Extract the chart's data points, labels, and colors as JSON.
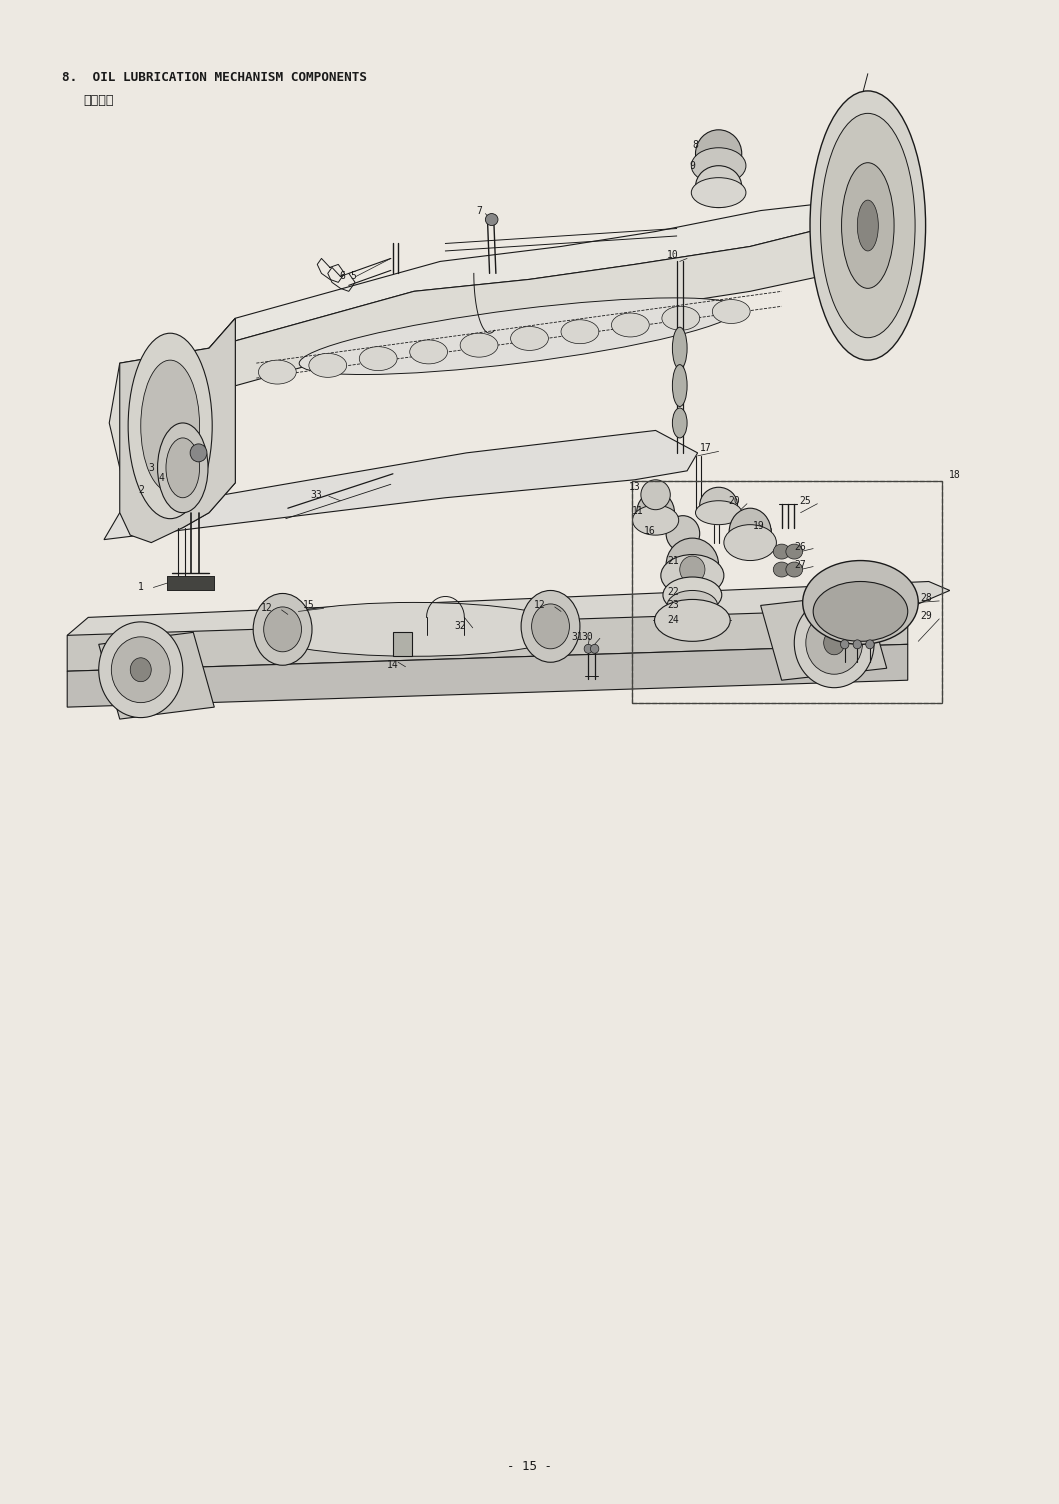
{
  "page_width": 10.59,
  "page_height": 15.04,
  "dpi": 100,
  "bg_color": "#ede9e2",
  "title_line1": "8.  OIL LUBRICATION MECHANISM COMPONENTS",
  "title_line2": "給油関係",
  "page_number": "- 15 -",
  "line_color": "#1a1a1a",
  "label_fontsize": 7.0,
  "title_fontsize": 9.2,
  "subtitle_fontsize": 9.2,
  "page_num_fontsize": 9.0
}
